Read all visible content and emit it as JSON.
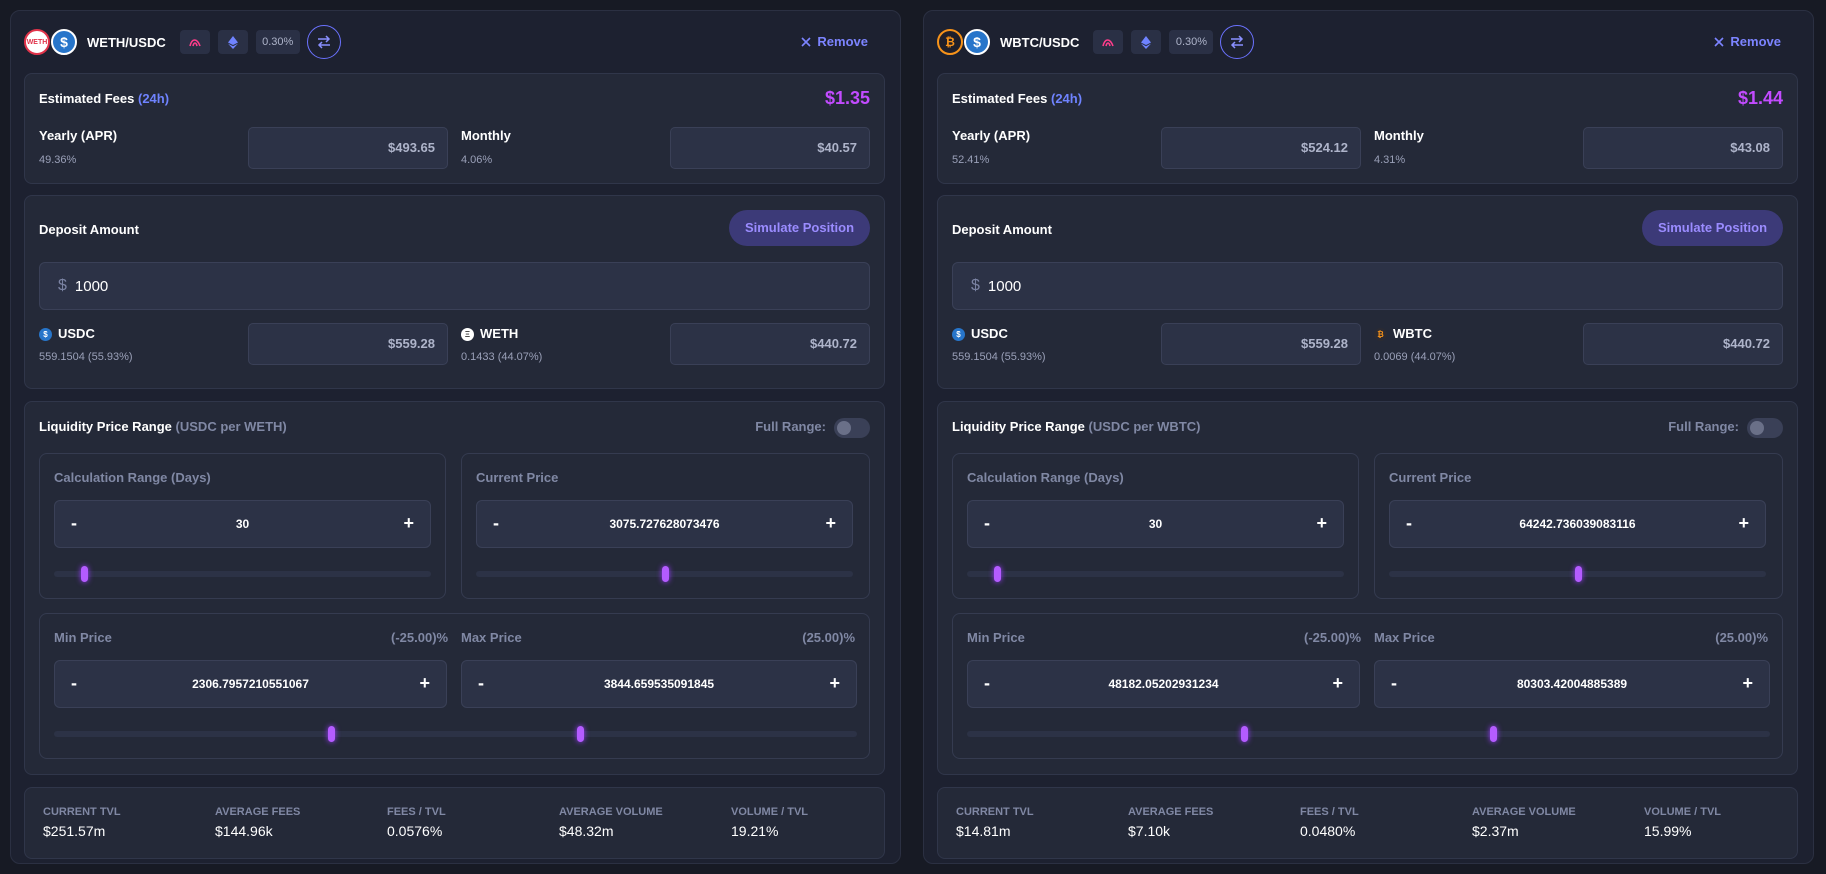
{
  "panels": [
    {
      "header": {
        "token_a_icon": "weth-logo",
        "token_b_icon": "usdc-logo",
        "token_a_short": "WETH",
        "token_b_short": "$",
        "pair": "WETH/USDC",
        "fee_tier": "0.30%",
        "remove_label": "Remove"
      },
      "fees": {
        "title": "Estimated Fees",
        "period": "(24h)",
        "value": "$1.35",
        "yearly_label": "Yearly (APR)",
        "yearly_pct": "49.36%",
        "yearly_value": "$493.65",
        "monthly_label": "Monthly",
        "monthly_pct": "4.06%",
        "monthly_value": "$40.57"
      },
      "deposit": {
        "title": "Deposit Amount",
        "simulate_label": "Simulate Position",
        "currency": "$",
        "amount": "1000",
        "token1_name": "USDC",
        "token1_detail": "559.1504 (55.93%)",
        "token1_value": "$559.28",
        "token2_name": "WETH",
        "token2_detail": "0.1433 (44.07%)",
        "token2_value": "$440.72"
      },
      "range": {
        "title": "Liquidity Price Range",
        "unit": "(USDC per WETH)",
        "full_range_label": "Full Range:",
        "calc_label": "Calculation Range (Days)",
        "calc_value": "30",
        "calc_slider_level": 0.08,
        "current_label": "Current Price",
        "current_value": "3075.727628073476",
        "current_slider_level": 0.5,
        "min_label": "Min Price",
        "min_pct": "(-25.00)%",
        "min_value": "2306.7957210551067",
        "max_label": "Max Price",
        "max_pct": "(25.00)%",
        "max_value": "3844.659535091845",
        "min_slider_level": 0.345,
        "max_slider_level": 0.655
      },
      "stats": [
        {
          "label": "CURRENT TVL",
          "value": "$251.57m"
        },
        {
          "label": "AVERAGE FEES",
          "value": "$144.96k"
        },
        {
          "label": "FEES / TVL",
          "value": "0.0576%"
        },
        {
          "label": "AVERAGE VOLUME",
          "value": "$48.32m"
        },
        {
          "label": "VOLUME / TVL",
          "value": "19.21%"
        }
      ]
    },
    {
      "header": {
        "token_a_icon": "wbtc-logo",
        "token_b_icon": "usdc-logo",
        "token_a_short": "₿",
        "token_b_short": "$",
        "pair": "WBTC/USDC",
        "fee_tier": "0.30%",
        "remove_label": "Remove"
      },
      "fees": {
        "title": "Estimated Fees",
        "period": "(24h)",
        "value": "$1.44",
        "yearly_label": "Yearly (APR)",
        "yearly_pct": "52.41%",
        "yearly_value": "$524.12",
        "monthly_label": "Monthly",
        "monthly_pct": "4.31%",
        "monthly_value": "$43.08"
      },
      "deposit": {
        "title": "Deposit Amount",
        "simulate_label": "Simulate Position",
        "currency": "$",
        "amount": "1000",
        "token1_name": "USDC",
        "token1_detail": "559.1504 (55.93%)",
        "token1_value": "$559.28",
        "token2_name": "WBTC",
        "token2_detail": "0.0069 (44.07%)",
        "token2_value": "$440.72"
      },
      "range": {
        "title": "Liquidity Price Range",
        "unit": "(USDC per WBTC)",
        "full_range_label": "Full Range:",
        "calc_label": "Calculation Range (Days)",
        "calc_value": "30",
        "calc_slider_level": 0.08,
        "current_label": "Current Price",
        "current_value": "64242.736039083116",
        "current_slider_level": 0.5,
        "min_label": "Min Price",
        "min_pct": "(-25.00)%",
        "min_value": "48182.05202931234",
        "max_label": "Max Price",
        "max_pct": "(25.00)%",
        "max_value": "80303.42004885389",
        "min_slider_level": 0.345,
        "max_slider_level": 0.655
      },
      "stats": [
        {
          "label": "CURRENT TVL",
          "value": "$14.81m"
        },
        {
          "label": "AVERAGE FEES",
          "value": "$7.10k"
        },
        {
          "label": "FEES / TVL",
          "value": "0.0480%"
        },
        {
          "label": "AVERAGE VOLUME",
          "value": "$2.37m"
        },
        {
          "label": "VOLUME / TVL",
          "value": "15.99%"
        }
      ]
    }
  ]
}
